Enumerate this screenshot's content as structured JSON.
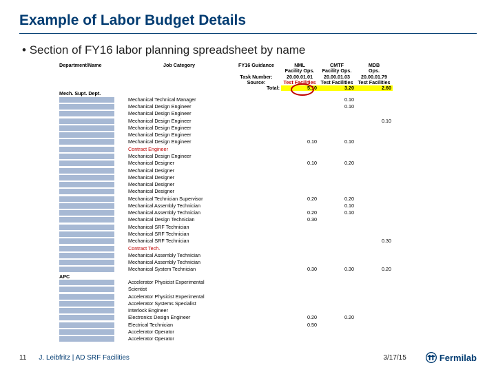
{
  "title": "Example of Labor Budget Details",
  "bullet": "Section of FY16 labor planning spreadsheet by name",
  "colors": {
    "brand": "#003b71",
    "highlight": "#ffff00",
    "redacted": "#a7b9d4",
    "danger": "#c00000"
  },
  "header": {
    "dept": "Department/Name",
    "job": "Job Category",
    "taskL": "FY16 Guidance",
    "taskLbl": "Task Number:",
    "srcLbl": "Source:",
    "cols": [
      {
        "l1": "NML",
        "l2": "Facility Ops.",
        "l3": "20.00.01.01",
        "l4": "Test Facilities"
      },
      {
        "l1": "CMTF",
        "l2": "Facility Ops.",
        "l3": "20.00.01.03",
        "l4": "Test Facilities"
      },
      {
        "l1": "MDB",
        "l2": "Ops.",
        "l3": "20.00.01.79",
        "l4": "Test Facilities"
      }
    ]
  },
  "total": {
    "label": "Total:",
    "v": [
      "5.10",
      "3.20",
      "2.60"
    ]
  },
  "sections": [
    {
      "heading": "Mech. Supt. Dept.",
      "rows": [
        {
          "job": "Mechanical Technical Manager",
          "v": [
            "",
            "0.10",
            ""
          ]
        },
        {
          "job": "Mechanical Design Engineer",
          "v": [
            "",
            "0.10",
            ""
          ]
        },
        {
          "job": "Mechanical Design Engineer",
          "v": [
            "",
            "",
            ""
          ]
        },
        {
          "job": "Mechanical Design Engineer",
          "v": [
            "",
            "",
            "0.10"
          ]
        },
        {
          "job": "Mechanical Design Engineer",
          "v": [
            "",
            "",
            ""
          ]
        },
        {
          "job": "Mechanical Design Engineer",
          "v": [
            "",
            "",
            ""
          ]
        },
        {
          "job": "Mechanical Design Engineer",
          "v": [
            "0.10",
            "0.10",
            ""
          ]
        },
        {
          "job": "Contract Engineer",
          "red": true,
          "v": [
            "",
            "",
            ""
          ]
        },
        {
          "job": "Mechanical Design Engineer",
          "v": [
            "",
            "",
            ""
          ]
        },
        {
          "job": "Mechanical Designer",
          "v": [
            "0.10",
            "0.20",
            ""
          ]
        },
        {
          "job": "Mechanical Designer",
          "v": [
            "",
            "",
            ""
          ]
        },
        {
          "job": "Mechanical Designer",
          "v": [
            "",
            "",
            ""
          ]
        },
        {
          "job": "Mechanical Designer",
          "v": [
            "",
            "",
            ""
          ]
        },
        {
          "job": "Mechanical Designer",
          "v": [
            "",
            "",
            ""
          ]
        },
        {
          "job": "Mechanical Technician Supervisor",
          "v": [
            "0.20",
            "0.20",
            ""
          ]
        },
        {
          "job": "Mechanical Assembly Technician",
          "v": [
            "",
            "0.10",
            ""
          ]
        },
        {
          "job": "Mechanical Assembly Technician",
          "v": [
            "0.20",
            "0.10",
            ""
          ]
        },
        {
          "job": "Mechanical Design Technician",
          "v": [
            "0.30",
            "",
            ""
          ]
        },
        {
          "job": "Mechanical SRF Technician",
          "v": [
            "",
            "",
            ""
          ]
        },
        {
          "job": "Mechanical SRF Technician",
          "v": [
            "",
            "",
            ""
          ]
        },
        {
          "job": "Mechanical SRF Technician",
          "v": [
            "",
            "",
            "0.30"
          ]
        },
        {
          "job": "Contract Tech.",
          "red": true,
          "v": [
            "",
            "",
            ""
          ]
        },
        {
          "job": "Mechanical Assembly Technician",
          "v": [
            "",
            "",
            ""
          ]
        },
        {
          "job": "Mechanical Assembly Technician",
          "v": [
            "",
            "",
            ""
          ]
        },
        {
          "job": "Mechanical System Technician",
          "v": [
            "0.30",
            "0.30",
            "0.20"
          ]
        }
      ]
    },
    {
      "heading": "APC",
      "rows": [
        {
          "job": "Accelerator Physicist Experimental",
          "v": [
            "",
            "",
            ""
          ]
        },
        {
          "job": "Scientist",
          "v": [
            "",
            "",
            ""
          ]
        },
        {
          "job": "Accelerator Physicist Experimental",
          "v": [
            "",
            "",
            ""
          ]
        },
        {
          "job": "Accelerator Systems Specialist",
          "v": [
            "",
            "",
            ""
          ]
        },
        {
          "job": "Interlock Engineer",
          "v": [
            "",
            "",
            ""
          ]
        },
        {
          "job": "Electronics Design Engineer",
          "v": [
            "0.20",
            "0.20",
            ""
          ]
        },
        {
          "job": "Electrical Technician",
          "v": [
            "0.50",
            "",
            ""
          ]
        },
        {
          "job": "Accelerator Operator",
          "v": [
            "",
            "",
            ""
          ]
        },
        {
          "job": "Accelerator Operator",
          "v": [
            "",
            "",
            ""
          ]
        }
      ]
    }
  ],
  "footer": {
    "page": "11",
    "text": "J. Leibfritz | AD SRF Facilities",
    "date": "3/17/15",
    "lab": "Fermilab"
  }
}
